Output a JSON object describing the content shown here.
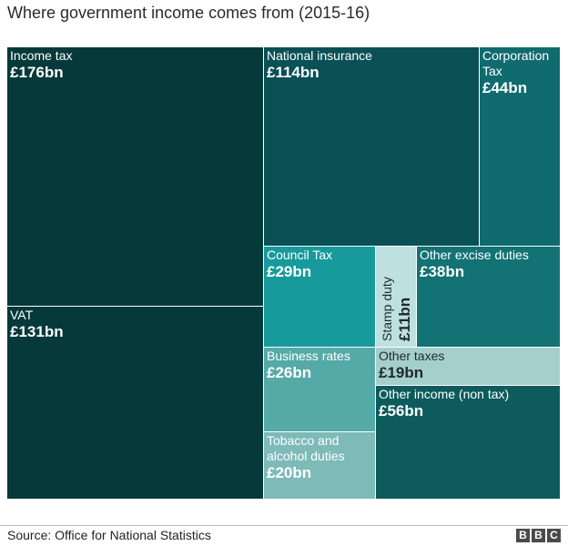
{
  "title": "Where government income comes from (2015-16)",
  "source": "Source: Office for National Statistics",
  "logo": [
    "B",
    "B",
    "C"
  ],
  "chart_data": {
    "type": "treemap",
    "title": "Where government income comes from (2015-16)",
    "unit": "£bn",
    "items": [
      {
        "name": "Income tax",
        "label_lines": [
          "Income tax"
        ],
        "value": 176,
        "value_label": "£176bn",
        "color": "#06393a",
        "text": "light"
      },
      {
        "name": "VAT",
        "label_lines": [
          "VAT"
        ],
        "value": 131,
        "value_label": "£131bn",
        "color": "#06393a",
        "text": "light"
      },
      {
        "name": "National insurance",
        "label_lines": [
          "National insurance"
        ],
        "value": 114,
        "value_label": "£114bn",
        "color": "#0a5055",
        "text": "light"
      },
      {
        "name": "Corporation Tax",
        "label_lines": [
          "Corporation",
          "Tax"
        ],
        "value": 44,
        "value_label": "£44bn",
        "color": "#0f6b6e",
        "text": "light"
      },
      {
        "name": "Council Tax",
        "label_lines": [
          "Council Tax"
        ],
        "value": 29,
        "value_label": "£29bn",
        "color": "#169a9c",
        "text": "light"
      },
      {
        "name": "Stamp duty",
        "label_lines": [
          "Stamp duty"
        ],
        "value": 11,
        "value_label": "£11bn",
        "color": "#bfe0e0",
        "text": "dark",
        "vertical": true
      },
      {
        "name": "Other excise duties",
        "label_lines": [
          "Other excise duties"
        ],
        "value": 38,
        "value_label": "£38bn",
        "color": "#127274",
        "text": "light"
      },
      {
        "name": "Business rates",
        "label_lines": [
          "Business rates"
        ],
        "value": 26,
        "value_label": "£26bn",
        "color": "#55aaa8",
        "text": "light"
      },
      {
        "name": "Other taxes",
        "label_lines": [
          "Other taxes"
        ],
        "value": 19,
        "value_label": "£19bn",
        "color": "#a5cfcc",
        "text": "dark"
      },
      {
        "name": "Other income (non tax)",
        "label_lines": [
          "Other income (non tax)"
        ],
        "value": 56,
        "value_label": "£56bn",
        "color": "#0d5b5c",
        "text": "light"
      },
      {
        "name": "Tobacco and alcohol duties",
        "label_lines": [
          "Tobacco and",
          "alcohol duties"
        ],
        "value": 20,
        "value_label": "£20bn",
        "color": "#7dbab8",
        "text": "light"
      }
    ]
  }
}
